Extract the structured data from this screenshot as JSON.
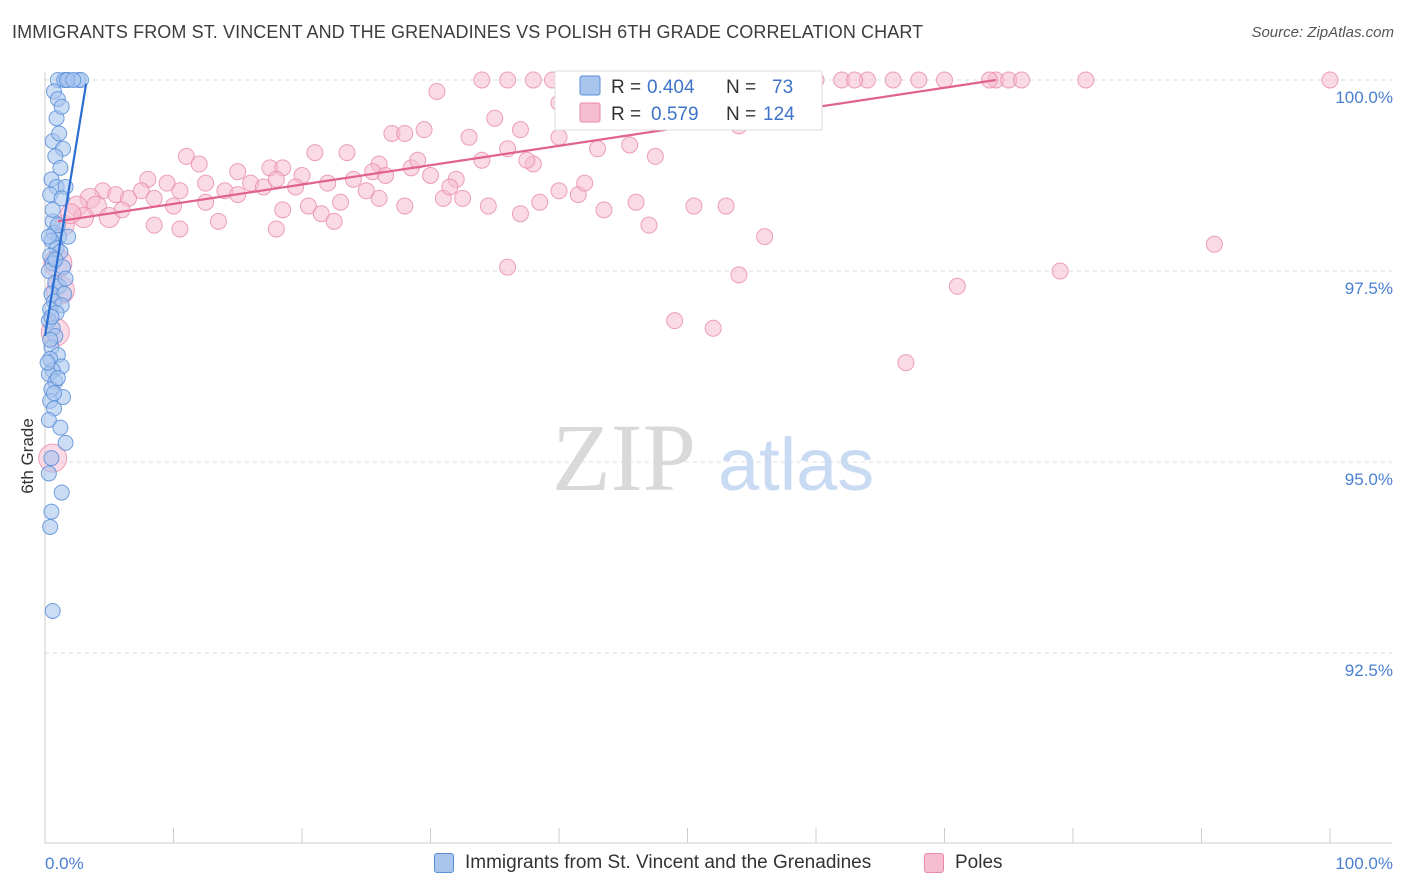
{
  "title": "IMMIGRANTS FROM ST. VINCENT AND THE GRENADINES VS POLISH 6TH GRADE CORRELATION CHART",
  "source": "Source: ZipAtlas.com",
  "watermark": {
    "zip": "ZIP",
    "atlas": "atlas"
  },
  "colors": {
    "blue_fill": "#a9c5ee",
    "blue_stroke": "#5b8fd8",
    "blue_line": "#2a6ed1",
    "pink_fill": "#f6bcd0",
    "pink_stroke": "#e98aaa",
    "pink_line": "#e0628f",
    "tick_text": "#4a7fd0",
    "grid": "#dddddd"
  },
  "legend_top": {
    "rows": [
      {
        "r_label": "R =",
        "r_value": "0.404",
        "n_label": "N =",
        "n_value": "73",
        "series": "blue"
      },
      {
        "r_label": "R =",
        "r_value": "0.579",
        "n_label": "N =",
        "n_value": "124",
        "series": "pink"
      }
    ]
  },
  "legend_bottom": [
    {
      "label": "Immigrants from St. Vincent and the Grenadines",
      "series": "blue"
    },
    {
      "label": "Poles",
      "series": "pink"
    }
  ],
  "chart_data": {
    "type": "scatter",
    "title": "IMMIGRANTS FROM ST. VINCENT AND THE GRENADINES VS POLISH 6TH GRADE CORRELATION CHART",
    "xlabel": "",
    "ylabel": "6th Grade",
    "xlim": [
      0,
      100
    ],
    "ylim": [
      90.0,
      100.25
    ],
    "x_tick_labels": [
      "0.0%",
      "100.0%"
    ],
    "y_ticks": [
      92.5,
      95.0,
      97.5,
      100.0
    ],
    "y_tick_labels": [
      "92.5%",
      "95.0%",
      "97.5%",
      "100.0%"
    ],
    "grid": true,
    "legend_position": "top-center",
    "series": [
      {
        "name": "Immigrants from St. Vincent and the Grenadines",
        "color": "blue",
        "R": 0.404,
        "N": 73,
        "trend": [
          [
            0.0,
            96.65
          ],
          [
            3.2,
            99.95
          ]
        ],
        "points": [
          [
            1.0,
            100.0
          ],
          [
            1.5,
            100.0
          ],
          [
            1.8,
            100.0
          ],
          [
            2.6,
            100.0
          ],
          [
            2.8,
            100.0
          ],
          [
            1.7,
            100.0
          ],
          [
            0.7,
            99.85
          ],
          [
            1.0,
            99.75
          ],
          [
            0.6,
            99.2
          ],
          [
            1.4,
            99.1
          ],
          [
            0.8,
            99.0
          ],
          [
            1.2,
            98.85
          ],
          [
            0.5,
            98.7
          ],
          [
            0.9,
            98.6
          ],
          [
            1.6,
            98.6
          ],
          [
            0.4,
            98.5
          ],
          [
            1.3,
            98.45
          ],
          [
            0.6,
            98.15
          ],
          [
            0.7,
            98.0
          ],
          [
            1.1,
            97.95
          ],
          [
            1.8,
            97.95
          ],
          [
            0.5,
            97.9
          ],
          [
            0.9,
            97.8
          ],
          [
            1.2,
            97.75
          ],
          [
            0.4,
            97.7
          ],
          [
            0.6,
            97.6
          ],
          [
            1.4,
            97.55
          ],
          [
            0.3,
            97.5
          ],
          [
            0.8,
            97.35
          ],
          [
            1.1,
            97.3
          ],
          [
            0.5,
            97.2
          ],
          [
            1.5,
            97.2
          ],
          [
            0.7,
            97.1
          ],
          [
            1.3,
            97.05
          ],
          [
            0.4,
            97.0
          ],
          [
            0.9,
            96.95
          ],
          [
            0.3,
            96.85
          ],
          [
            0.6,
            96.75
          ],
          [
            0.8,
            96.65
          ],
          [
            0.5,
            96.5
          ],
          [
            1.0,
            96.4
          ],
          [
            0.4,
            96.35
          ],
          [
            1.3,
            96.25
          ],
          [
            0.6,
            96.2
          ],
          [
            0.3,
            96.15
          ],
          [
            0.8,
            96.05
          ],
          [
            0.5,
            95.95
          ],
          [
            1.4,
            95.85
          ],
          [
            0.4,
            95.8
          ],
          [
            0.7,
            95.7
          ],
          [
            0.3,
            95.55
          ],
          [
            1.2,
            95.45
          ],
          [
            1.6,
            95.25
          ],
          [
            0.5,
            95.05
          ],
          [
            0.3,
            94.85
          ],
          [
            1.3,
            94.6
          ],
          [
            0.5,
            94.35
          ],
          [
            0.4,
            94.15
          ],
          [
            0.6,
            93.05
          ],
          [
            0.9,
            99.5
          ],
          [
            1.1,
            99.3
          ],
          [
            0.6,
            98.3
          ],
          [
            1.0,
            98.1
          ],
          [
            0.8,
            97.65
          ],
          [
            1.6,
            97.4
          ],
          [
            0.4,
            96.6
          ],
          [
            1.0,
            96.1
          ],
          [
            0.7,
            95.9
          ],
          [
            0.2,
            96.3
          ],
          [
            2.2,
            100.0
          ],
          [
            1.3,
            99.65
          ],
          [
            0.3,
            97.95
          ],
          [
            0.5,
            96.9
          ]
        ]
      },
      {
        "name": "Poles",
        "color": "pink",
        "R": 0.579,
        "N": 124,
        "trend": [
          [
            1.0,
            98.15
          ],
          [
            74.0,
            100.0
          ]
        ],
        "points": [
          [
            34.0,
            100.0
          ],
          [
            36.0,
            100.0
          ],
          [
            38.0,
            100.0
          ],
          [
            39.5,
            100.0
          ],
          [
            41.0,
            100.0
          ],
          [
            43.0,
            100.0
          ],
          [
            46.0,
            100.0
          ],
          [
            48.0,
            100.0
          ],
          [
            50.0,
            100.0
          ],
          [
            52.0,
            100.0
          ],
          [
            54.0,
            100.0
          ],
          [
            56.0,
            100.0
          ],
          [
            58.0,
            100.0
          ],
          [
            60.0,
            100.0
          ],
          [
            62.0,
            100.0
          ],
          [
            64.0,
            100.0
          ],
          [
            66.0,
            100.0
          ],
          [
            68.0,
            100.0
          ],
          [
            70.0,
            100.0
          ],
          [
            74.0,
            100.0
          ],
          [
            75.0,
            100.0
          ],
          [
            76.0,
            100.0
          ],
          [
            81.0,
            100.0
          ],
          [
            100.0,
            100.0
          ],
          [
            42.0,
            100.0
          ],
          [
            44.5,
            100.0
          ],
          [
            63.0,
            100.0
          ],
          [
            73.5,
            100.0
          ],
          [
            30.5,
            99.85
          ],
          [
            40.0,
            99.7
          ],
          [
            46.0,
            99.55
          ],
          [
            51.0,
            99.6
          ],
          [
            54.0,
            99.4
          ],
          [
            35.0,
            99.5
          ],
          [
            37.0,
            99.35
          ],
          [
            27.0,
            99.3
          ],
          [
            28.0,
            99.3
          ],
          [
            29.5,
            99.35
          ],
          [
            33.0,
            99.25
          ],
          [
            36.0,
            99.1
          ],
          [
            21.0,
            99.05
          ],
          [
            23.5,
            99.05
          ],
          [
            34.0,
            98.95
          ],
          [
            26.0,
            98.9
          ],
          [
            11.0,
            99.0
          ],
          [
            12.0,
            98.9
          ],
          [
            17.5,
            98.85
          ],
          [
            18.5,
            98.85
          ],
          [
            20.0,
            98.75
          ],
          [
            15.0,
            98.8
          ],
          [
            8.0,
            98.7
          ],
          [
            9.5,
            98.65
          ],
          [
            10.5,
            98.55
          ],
          [
            12.5,
            98.65
          ],
          [
            14.0,
            98.55
          ],
          [
            16.0,
            98.65
          ],
          [
            17.0,
            98.6
          ],
          [
            18.0,
            98.7
          ],
          [
            19.5,
            98.6
          ],
          [
            22.0,
            98.65
          ],
          [
            24.0,
            98.7
          ],
          [
            25.5,
            98.8
          ],
          [
            26.5,
            98.75
          ],
          [
            28.5,
            98.85
          ],
          [
            30.0,
            98.75
          ],
          [
            32.0,
            98.7
          ],
          [
            4.5,
            98.55
          ],
          [
            5.5,
            98.5
          ],
          [
            6.5,
            98.45
          ],
          [
            7.5,
            98.55
          ],
          [
            3.5,
            98.45
          ],
          [
            4.0,
            98.35
          ],
          [
            5.0,
            98.2
          ],
          [
            6.0,
            98.3
          ],
          [
            2.5,
            98.35
          ],
          [
            3.0,
            98.2
          ],
          [
            1.5,
            98.1
          ],
          [
            2.0,
            98.25
          ],
          [
            8.5,
            98.45
          ],
          [
            10.0,
            98.35
          ],
          [
            12.5,
            98.4
          ],
          [
            15.0,
            98.5
          ],
          [
            18.5,
            98.3
          ],
          [
            20.5,
            98.35
          ],
          [
            21.5,
            98.25
          ],
          [
            23.0,
            98.4
          ],
          [
            26.0,
            98.45
          ],
          [
            28.0,
            98.35
          ],
          [
            31.0,
            98.45
          ],
          [
            32.5,
            98.45
          ],
          [
            34.5,
            98.35
          ],
          [
            37.0,
            98.25
          ],
          [
            38.5,
            98.4
          ],
          [
            40.0,
            98.55
          ],
          [
            41.5,
            98.5
          ],
          [
            43.5,
            98.3
          ],
          [
            47.0,
            98.1
          ],
          [
            50.5,
            98.35
          ],
          [
            18.0,
            98.05
          ],
          [
            13.5,
            98.15
          ],
          [
            8.5,
            98.1
          ],
          [
            10.5,
            98.05
          ],
          [
            53.0,
            98.35
          ],
          [
            56.0,
            97.95
          ],
          [
            91.0,
            97.85
          ],
          [
            36.0,
            97.55
          ],
          [
            54.0,
            97.45
          ],
          [
            79.0,
            97.5
          ],
          [
            71.0,
            97.3
          ],
          [
            49.0,
            96.85
          ],
          [
            52.0,
            96.75
          ],
          [
            67.0,
            96.3
          ],
          [
            1.0,
            97.6
          ],
          [
            1.2,
            97.25
          ],
          [
            0.8,
            96.7
          ],
          [
            0.6,
            95.05
          ],
          [
            47.5,
            99.0
          ],
          [
            43.0,
            99.1
          ],
          [
            45.5,
            99.15
          ],
          [
            38.0,
            98.9
          ],
          [
            42.0,
            98.65
          ],
          [
            37.5,
            98.95
          ],
          [
            40.0,
            99.25
          ],
          [
            31.5,
            98.6
          ],
          [
            29.0,
            98.95
          ],
          [
            25.0,
            98.55
          ],
          [
            22.5,
            98.15
          ],
          [
            46.0,
            98.4
          ]
        ]
      }
    ]
  }
}
